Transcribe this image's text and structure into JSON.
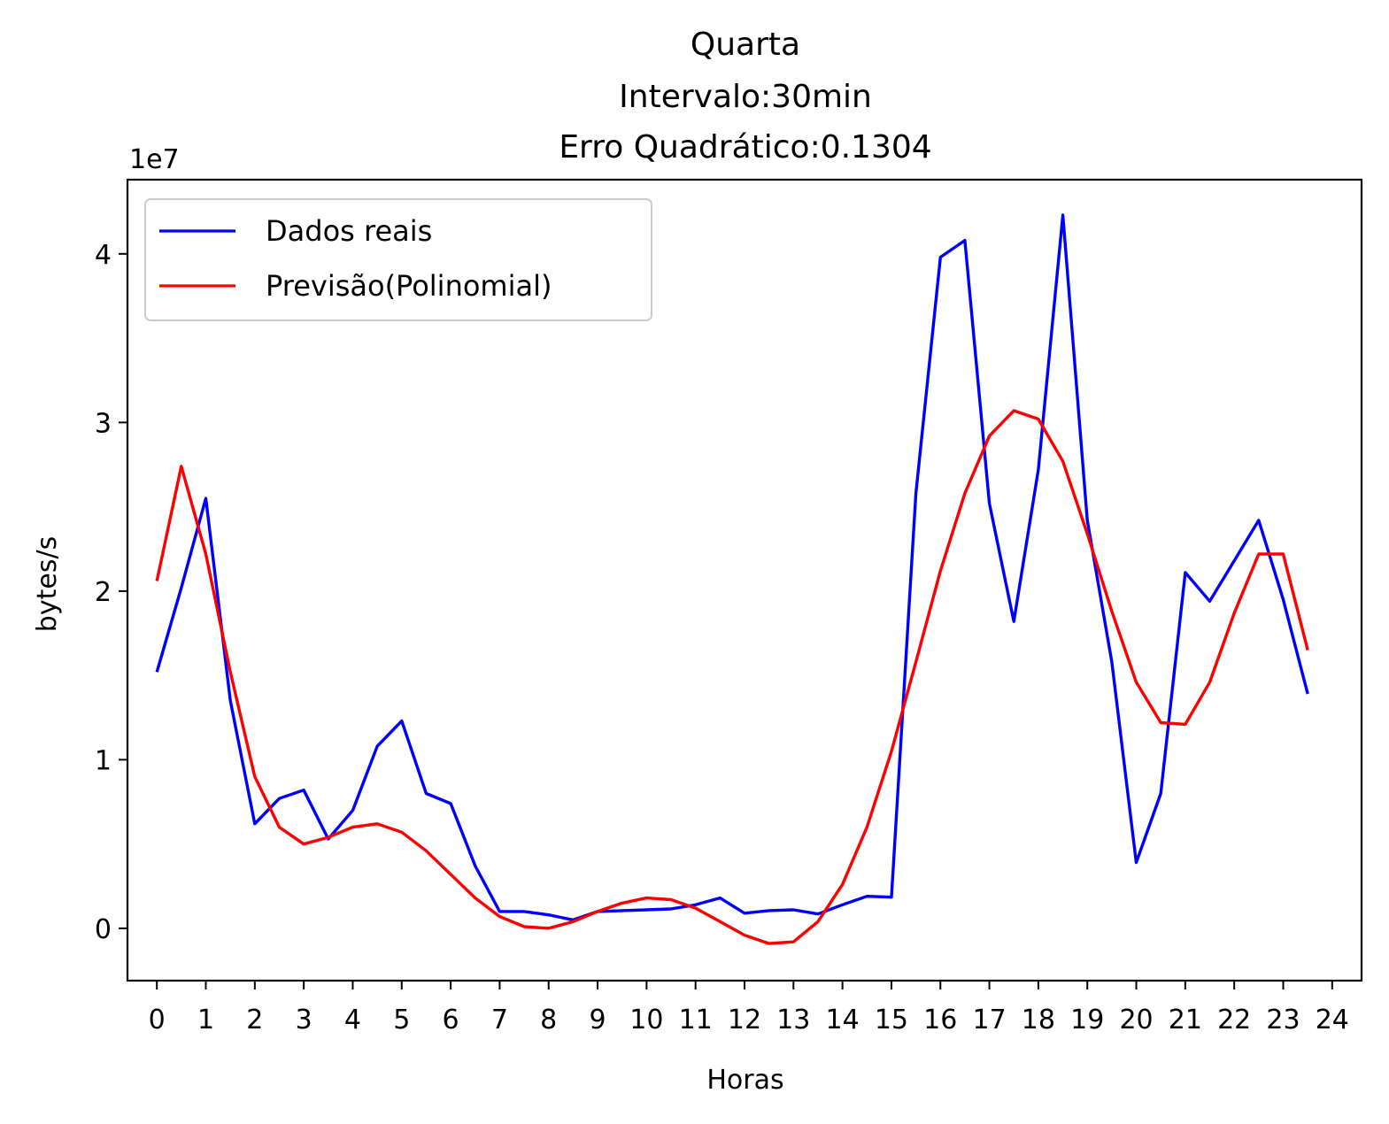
{
  "chart_data": {
    "type": "line",
    "title_lines": [
      "Quarta",
      "Intervalo:30min",
      "Erro Quadrático:0.1304"
    ],
    "xlabel": "Horas",
    "ylabel": "bytes/s",
    "y_offset_label": "1e7",
    "xlim": [
      -0.6,
      24.6
    ],
    "ylim": [
      -0.31,
      4.44
    ],
    "xticks": [
      0,
      1,
      2,
      3,
      4,
      5,
      6,
      7,
      8,
      9,
      10,
      11,
      12,
      13,
      14,
      15,
      16,
      17,
      18,
      19,
      20,
      21,
      22,
      23,
      24
    ],
    "yticks": [
      0,
      1,
      2,
      3,
      4
    ],
    "legend_position": "upper left",
    "series": [
      {
        "name": "Dados reais",
        "color": "#0000ff",
        "x": [
          0,
          0.5,
          1,
          1.5,
          2,
          2.5,
          3,
          3.5,
          4,
          4.5,
          5,
          5.5,
          6,
          6.5,
          7,
          7.5,
          8,
          8.5,
          9,
          9.5,
          10,
          10.5,
          11,
          11.5,
          12,
          12.5,
          13,
          13.5,
          14,
          14.5,
          15,
          15.5,
          16,
          16.5,
          17,
          17.5,
          18,
          18.5,
          19,
          19.5,
          20,
          20.5,
          21,
          21.5,
          22,
          22.5,
          23,
          23.5
        ],
        "y": [
          1.52,
          2.02,
          2.55,
          1.35,
          0.62,
          0.77,
          0.82,
          0.53,
          0.7,
          1.08,
          1.23,
          0.8,
          0.74,
          0.37,
          0.1,
          0.1,
          0.08,
          0.05,
          0.1,
          0.105,
          0.11,
          0.115,
          0.14,
          0.18,
          0.09,
          0.105,
          0.11,
          0.085,
          0.14,
          0.19,
          0.185,
          2.58,
          3.98,
          4.08,
          2.52,
          1.82,
          2.72,
          4.23,
          2.42,
          1.58,
          0.39,
          0.8,
          2.11,
          1.94,
          2.18,
          2.42,
          1.95,
          1.39
        ]
      },
      {
        "name": "Previsão(Polinomial)",
        "color": "#ff0000",
        "x": [
          0,
          0.5,
          1,
          1.5,
          2,
          2.5,
          3,
          3.5,
          4,
          4.5,
          5,
          5.5,
          6,
          6.5,
          7,
          7.5,
          8,
          8.5,
          9,
          9.5,
          10,
          10.5,
          11,
          11.5,
          12,
          12.5,
          13,
          13.5,
          14,
          14.5,
          15,
          15.5,
          16,
          16.5,
          17,
          17.5,
          18,
          18.5,
          19,
          19.5,
          20,
          20.5,
          21,
          21.5,
          22,
          22.5,
          23,
          23.5
        ],
        "y": [
          2.06,
          2.74,
          2.22,
          1.52,
          0.9,
          0.6,
          0.5,
          0.54,
          0.6,
          0.62,
          0.57,
          0.46,
          0.32,
          0.18,
          0.07,
          0.01,
          0.0,
          0.04,
          0.1,
          0.15,
          0.18,
          0.17,
          0.12,
          0.04,
          -0.04,
          -0.09,
          -0.08,
          0.04,
          0.26,
          0.6,
          1.05,
          1.58,
          2.12,
          2.58,
          2.92,
          3.07,
          3.02,
          2.77,
          2.34,
          1.88,
          1.46,
          1.22,
          1.21,
          1.46,
          1.87,
          2.22,
          2.22,
          1.65
        ]
      }
    ]
  }
}
